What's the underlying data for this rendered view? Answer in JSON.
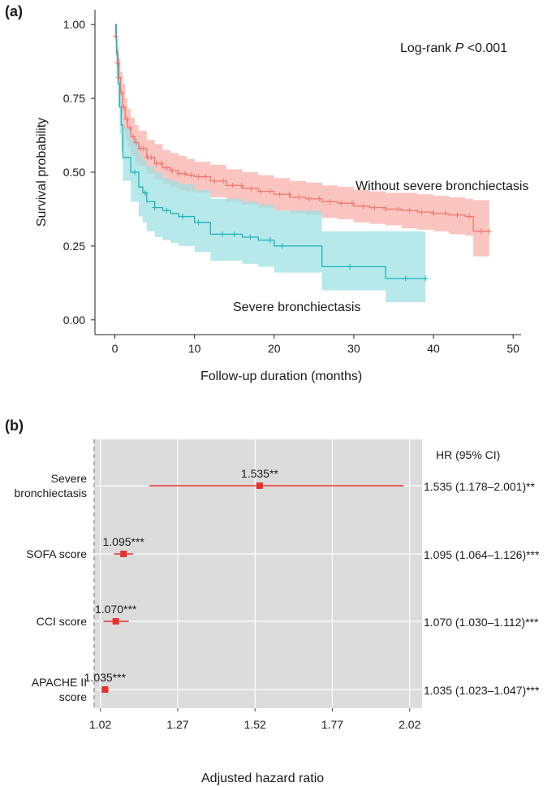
{
  "chart_data": [
    {
      "type": "line",
      "subtype": "kaplan-meier",
      "panel_label": "(a)",
      "xlabel": "Follow-up duration (months)",
      "ylabel": "Survival probability",
      "xlim": [
        -2.5,
        51
      ],
      "ylim": [
        -0.05,
        1.05
      ],
      "x_ticks": [
        0,
        10,
        20,
        30,
        40,
        50
      ],
      "x_tick_labels": [
        "0",
        "10",
        "20",
        "30",
        "40",
        "50"
      ],
      "y_ticks": [
        0,
        0.25,
        0.5,
        0.75,
        1.0
      ],
      "y_tick_labels": [
        "0.00",
        "0.25",
        "0.50",
        "0.75",
        "1.00"
      ],
      "annotation_prefix": "Log-rank ",
      "annotation_italic": "P",
      "annotation_suffix": " <0.001",
      "series": [
        {
          "name": "Without severe bronchiectasis",
          "color": "#f0766c",
          "band_color": "#f8b0ab",
          "x": [
            0,
            0.1,
            0.2,
            0.3,
            0.5,
            0.7,
            1.0,
            1.3,
            1.6,
            2.0,
            2.5,
            3,
            4,
            5,
            6,
            7,
            8,
            9,
            10,
            12,
            14,
            16,
            18,
            20,
            22,
            24,
            26,
            28,
            30,
            32,
            34,
            36,
            38,
            40,
            42,
            43,
            44,
            45,
            46,
            47
          ],
          "y": [
            1.0,
            0.96,
            0.91,
            0.87,
            0.82,
            0.77,
            0.72,
            0.68,
            0.65,
            0.62,
            0.6,
            0.58,
            0.55,
            0.53,
            0.515,
            0.505,
            0.495,
            0.49,
            0.485,
            0.47,
            0.455,
            0.445,
            0.435,
            0.425,
            0.415,
            0.41,
            0.4,
            0.395,
            0.385,
            0.38,
            0.375,
            0.37,
            0.365,
            0.36,
            0.355,
            0.355,
            0.35,
            0.3,
            0.3,
            0.3
          ],
          "ci_upper": [
            1.0,
            0.985,
            0.955,
            0.925,
            0.885,
            0.84,
            0.8,
            0.75,
            0.715,
            0.685,
            0.66,
            0.64,
            0.61,
            0.595,
            0.575,
            0.565,
            0.555,
            0.545,
            0.535,
            0.525,
            0.51,
            0.5,
            0.49,
            0.48,
            0.47,
            0.465,
            0.455,
            0.45,
            0.44,
            0.435,
            0.43,
            0.43,
            0.425,
            0.42,
            0.415,
            0.415,
            0.41,
            0.405,
            0.405,
            0.405
          ],
          "ci_lower": [
            1.0,
            0.935,
            0.865,
            0.815,
            0.755,
            0.7,
            0.645,
            0.61,
            0.585,
            0.555,
            0.535,
            0.52,
            0.495,
            0.475,
            0.46,
            0.45,
            0.44,
            0.435,
            0.43,
            0.415,
            0.4,
            0.39,
            0.38,
            0.37,
            0.36,
            0.355,
            0.345,
            0.34,
            0.33,
            0.325,
            0.32,
            0.31,
            0.305,
            0.3,
            0.29,
            0.29,
            0.285,
            0.215,
            0.215,
            0.215
          ]
        },
        {
          "name": "Severe bronchiectasis",
          "color": "#19b4bd",
          "band_color": "#9fe0e3",
          "x": [
            0,
            0.2,
            0.4,
            0.6,
            0.8,
            1.0,
            2,
            3,
            3.5,
            4,
            5,
            6,
            7,
            8,
            10,
            12,
            14,
            16,
            18,
            20,
            22,
            24,
            26,
            28,
            30,
            32,
            34,
            36,
            38,
            39
          ],
          "y": [
            1.0,
            0.9,
            0.8,
            0.72,
            0.66,
            0.55,
            0.5,
            0.45,
            0.43,
            0.4,
            0.38,
            0.37,
            0.36,
            0.35,
            0.33,
            0.29,
            0.29,
            0.28,
            0.27,
            0.25,
            0.25,
            0.25,
            0.18,
            0.18,
            0.18,
            0.18,
            0.14,
            0.14,
            0.14,
            0.14
          ],
          "ci_upper": [
            1.0,
            0.95,
            0.87,
            0.8,
            0.74,
            0.65,
            0.61,
            0.56,
            0.54,
            0.52,
            0.5,
            0.48,
            0.47,
            0.46,
            0.44,
            0.41,
            0.41,
            0.4,
            0.39,
            0.37,
            0.37,
            0.37,
            0.3,
            0.3,
            0.3,
            0.3,
            0.3,
            0.3,
            0.3,
            0.3
          ],
          "ci_lower": [
            1.0,
            0.82,
            0.72,
            0.63,
            0.57,
            0.47,
            0.4,
            0.35,
            0.33,
            0.3,
            0.28,
            0.27,
            0.26,
            0.25,
            0.23,
            0.2,
            0.2,
            0.19,
            0.18,
            0.16,
            0.16,
            0.16,
            0.1,
            0.1,
            0.1,
            0.1,
            0.06,
            0.06,
            0.06,
            0.06
          ]
        }
      ],
      "censored": [
        {
          "series": "Without severe bronchiectasis",
          "x": [
            0.1,
            0.3,
            0.5,
            0.8,
            1.1,
            1.5,
            1.9,
            2.3,
            2.7,
            3.2,
            3.6,
            4.1,
            4.6,
            5.2,
            5.8,
            6.5,
            7.2,
            8.0,
            8.8,
            9.6,
            10.5,
            11.4,
            12.5,
            13.6,
            14.8,
            15.9,
            17.1,
            18.3,
            19.5,
            20.7,
            21.9,
            23.1,
            24.4,
            25.7,
            27.0,
            28.4,
            29.8,
            31.2,
            32.6,
            34.0,
            35.5,
            37.0,
            38.5,
            40.0,
            41.5,
            43.0,
            44.5,
            46.0,
            47.0
          ]
        },
        {
          "series": "Severe bronchiectasis",
          "x": [
            2.5,
            3.8,
            5.0,
            6.5,
            8.5,
            10.5,
            13.5,
            15.0,
            17.0,
            19.5,
            21.0,
            29.5,
            36.5,
            39.0
          ]
        }
      ]
    },
    {
      "type": "forest",
      "panel_label": "(b)",
      "xlabel": "Adjusted hazard ratio",
      "header": "HR (95% CI)",
      "xlim": [
        1.0,
        2.06
      ],
      "x_ticks": [
        1.02,
        1.27,
        1.52,
        1.77,
        2.02
      ],
      "x_tick_labels": [
        "1.02",
        "1.27",
        "1.52",
        "1.77",
        "2.02"
      ],
      "reference_line": 1.0,
      "rows": [
        {
          "label_lines": [
            "Severe",
            "bronchiectasis"
          ],
          "hr": 1.535,
          "lower": 1.178,
          "upper": 2.001,
          "point_label": "1.535**",
          "ci_text": "1.535 (1.178–2.001)**"
        },
        {
          "label_lines": [
            "SOFA score"
          ],
          "hr": 1.095,
          "lower": 1.064,
          "upper": 1.126,
          "point_label": "1.095***",
          "ci_text": "1.095 (1.064–1.126)***"
        },
        {
          "label_lines": [
            "CCI score"
          ],
          "hr": 1.07,
          "lower": 1.03,
          "upper": 1.112,
          "point_label": "1.070***",
          "ci_text": "1.070 (1.030–1.112)***"
        },
        {
          "label_lines": [
            "APACHE II",
            "score"
          ],
          "hr": 1.035,
          "lower": 1.023,
          "upper": 1.047,
          "point_label": "1.035***",
          "ci_text": "1.035 (1.023–1.047)***"
        }
      ]
    }
  ]
}
